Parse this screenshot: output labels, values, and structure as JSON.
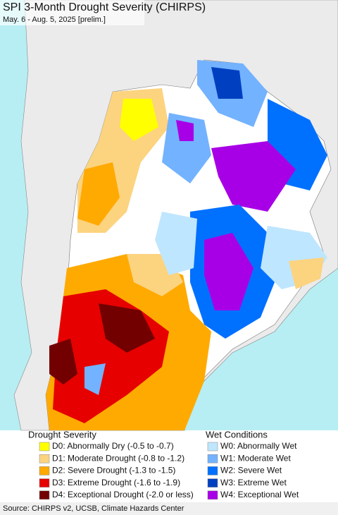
{
  "header": {
    "title": "SPI 3-Month Drought Severity (CHIRPS)",
    "subtitle": "May. 6 - Aug. 5, 2025 [prelim.]"
  },
  "legend": {
    "drought": {
      "title": "Drought Severity",
      "items": [
        {
          "label": "D0: Abnormally Dry (-0.5 to -0.7)",
          "color": "#ffff00"
        },
        {
          "label": "D1: Moderate Drought (-0.8 to -1.2)",
          "color": "#fcd37f"
        },
        {
          "label": "D2: Severe Drought (-1.3 to -1.5)",
          "color": "#ffaa00"
        },
        {
          "label": "D3: Extreme Drought (-1.6 to -1.9)",
          "color": "#e60000"
        },
        {
          "label": "D4: Exceptional Drought (-2.0 or less)",
          "color": "#730000"
        }
      ]
    },
    "wet": {
      "title": "Wet Conditions",
      "items": [
        {
          "label": "W0: Abnormally Wet",
          "color": "#bfe6ff"
        },
        {
          "label": "W1: Moderate Wet",
          "color": "#73b2ff"
        },
        {
          "label": "W2: Severe Wet",
          "color": "#0070ff"
        },
        {
          "label": "W3: Extreme Wet",
          "color": "#0040c0"
        },
        {
          "label": "W4: Exceptional Wet",
          "color": "#a800e6"
        }
      ]
    }
  },
  "footer": {
    "source": "Source: CHIRPS v2, UCSB, Climate Hazards Center"
  }
}
